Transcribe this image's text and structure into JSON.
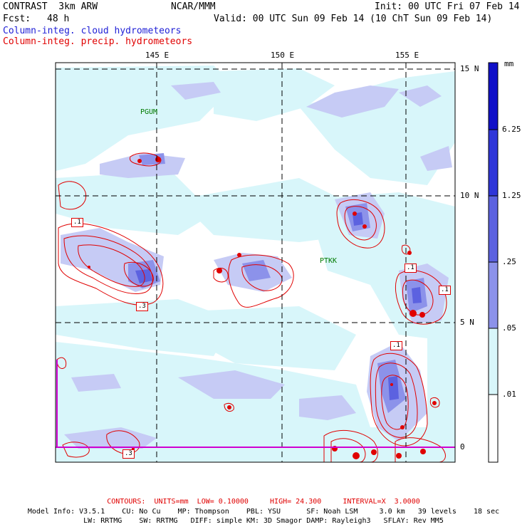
{
  "header": {
    "model": "CONTRAST  3km ARW",
    "org": "NCAR/MMM",
    "init": "Init: 00 UTC Fri 07 Feb 14",
    "fcst_label": "Fcst:",
    "fcst_value": "48 h",
    "valid": "Valid: 00 UTC Sun 09 Feb 14 (10 ChT Sun 09 Feb 14)",
    "field1": "Column-integ. cloud hydrometeors",
    "field2": "Column-integ. precip. hydrometeors"
  },
  "map": {
    "lon_labels": [
      "145 E",
      "150 E",
      "155 E"
    ],
    "lat_labels": [
      "15 N",
      "10 N",
      "5 N",
      "0"
    ],
    "stations": [
      "PGUM",
      "PTKK"
    ],
    "contour_labels": [
      ".1",
      ".3",
      ".1",
      ".1",
      ".1",
      ".3"
    ],
    "colors": {
      "level1": "#d8f6fa",
      "level2": "#c6cbf5",
      "level3": "#8c92ea",
      "level4": "#5c62e0",
      "level5": "#2f36d8",
      "level6": "#1010c8",
      "contour": "#e00000",
      "grid": "#000000",
      "equator": "#d000d0"
    }
  },
  "colorbar": {
    "units": "mm",
    "ticks": [
      "6.25",
      "1.25",
      ".25",
      ".05",
      ".01"
    ],
    "colors": [
      "#1010c8",
      "#2f36d8",
      "#5c62e0",
      "#8c92ea",
      "#c6cbf5",
      "#d8f6fa",
      "#ffffff"
    ]
  },
  "footer": {
    "contours": "CONTOURS:  UNITS=mm  LOW= 0.10000     HIGH= 24.300     INTERVAL=X  3.0000",
    "model_info": "Model Info: V3.5.1    CU: No Cu    MP: Thompson    PBL: YSU      SF: Noah LSM     3.0 km   39 levels    18 sec",
    "model_info2": "LW: RRTMG    SW: RRTMG   DIFF: simple KM: 3D Smagor DAMP: Rayleigh3   SFLAY: Rev MM5"
  }
}
